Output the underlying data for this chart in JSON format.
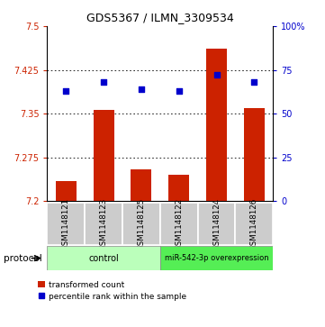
{
  "title": "GDS5367 / ILMN_3309534",
  "samples": [
    "GSM1148121",
    "GSM1148123",
    "GSM1148125",
    "GSM1148122",
    "GSM1148124",
    "GSM1148126"
  ],
  "bar_values": [
    7.235,
    7.357,
    7.255,
    7.245,
    7.462,
    7.36
  ],
  "bar_bottom": 7.2,
  "blue_values": [
    63,
    68,
    64,
    63,
    72,
    68
  ],
  "ylim_left": [
    7.2,
    7.5
  ],
  "ylim_right": [
    0,
    100
  ],
  "yticks_left": [
    7.2,
    7.275,
    7.35,
    7.425,
    7.5
  ],
  "ytick_labels_left": [
    "7.2",
    "7.275",
    "7.35",
    "7.425",
    "7.5"
  ],
  "yticks_right": [
    0,
    25,
    50,
    75,
    100
  ],
  "ytick_labels_right": [
    "0",
    "25",
    "50",
    "75",
    "100%"
  ],
  "bar_color": "#cc2200",
  "blue_color": "#0000cc",
  "group_labels": [
    "control",
    "miR-542-3p overexpression"
  ],
  "control_color": "#bbffbb",
  "overexp_color": "#55ee55",
  "legend_bar_label": "transformed count",
  "legend_blue_label": "percentile rank within the sample",
  "protocol_label": "protocol",
  "sample_bg_color": "#cccccc",
  "tick_color_left": "#cc2200",
  "tick_color_right": "#0000cc"
}
